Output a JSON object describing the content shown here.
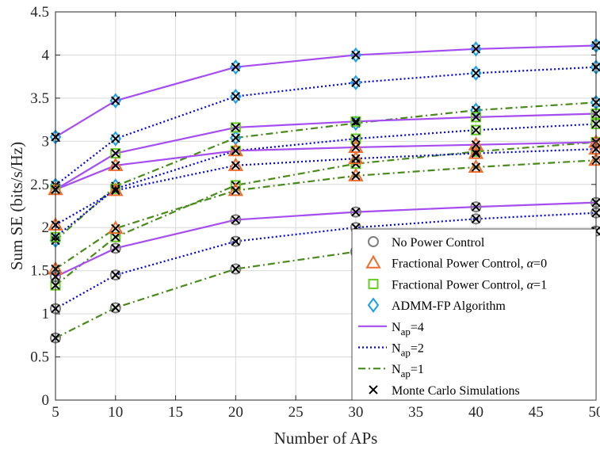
{
  "chart_data": {
    "type": "line",
    "xlabel": "Number of APs",
    "ylabel": "Sum SE (bits/s/Hz)",
    "xlim": [
      5,
      50
    ],
    "ylim": [
      0,
      4.5
    ],
    "xticks": [
      "5",
      "10",
      "15",
      "20",
      "25",
      "30",
      "35",
      "40",
      "45",
      "50"
    ],
    "yticks": [
      "0",
      "0.5",
      "1",
      "1.5",
      "2",
      "2.5",
      "3",
      "3.5",
      "4",
      "4.5"
    ],
    "grid": true,
    "legend_position": "bottom-right",
    "x": [
      5,
      10,
      20,
      30,
      40,
      50
    ],
    "colors": {
      "nap4": "#a64df2",
      "nap2": "#0000e6",
      "nap1": "#4a8a1c",
      "no_power_control": "#7f7f7f",
      "fractional_alpha0": "#ee6c2c",
      "fractional_alpha1": "#66cc22",
      "admm_fp": "#1a9fe8",
      "monte_carlo": "#000000"
    },
    "legend": [
      {
        "marker": "circle",
        "prefix": "No Power Control",
        "alpha": "",
        "suffix": ""
      },
      {
        "marker": "triangle",
        "prefix": "Fractional Power Control, ",
        "alpha": "α",
        "suffix": "=0"
      },
      {
        "marker": "square",
        "prefix": "Fractional Power Control, ",
        "alpha": "α",
        "suffix": "=1"
      },
      {
        "marker": "diamond",
        "prefix": "ADMM-FP Algorithm",
        "alpha": "",
        "suffix": ""
      },
      {
        "marker": "line-solid",
        "main": "N",
        "sub": "ap",
        "suffix": "=4"
      },
      {
        "marker": "line-dotted",
        "main": "N",
        "sub": "ap",
        "suffix": "=2"
      },
      {
        "marker": "line-dashdot",
        "main": "N",
        "sub": "ap",
        "suffix": "=1"
      },
      {
        "marker": "cross",
        "prefix": "Monte Carlo Simulations",
        "alpha": "",
        "suffix": ""
      }
    ],
    "series": [
      {
        "name": "ADMM-FP Algorithm, N_ap=4",
        "nap": 4,
        "method": "admm",
        "values": [
          3.05,
          3.47,
          3.86,
          4.0,
          4.07,
          4.11
        ]
      },
      {
        "name": "ADMM-FP Algorithm, N_ap=2",
        "nap": 2,
        "method": "admm",
        "values": [
          2.49,
          3.03,
          3.52,
          3.68,
          3.79,
          3.86
        ]
      },
      {
        "name": "ADMM-FP Algorithm, N_ap=1",
        "nap": 1,
        "method": "admm",
        "values": [
          1.85,
          2.48,
          3.04,
          3.21,
          3.36,
          3.45
        ]
      },
      {
        "name": "Fractional Power Control alpha=1, N_ap=4",
        "nap": 4,
        "method": "frac1",
        "values": [
          2.44,
          2.86,
          3.16,
          3.23,
          3.28,
          3.32
        ]
      },
      {
        "name": "Fractional Power Control alpha=1, N_ap=2",
        "nap": 2,
        "method": "frac1",
        "values": [
          1.89,
          2.45,
          2.89,
          3.03,
          3.13,
          3.2
        ]
      },
      {
        "name": "Fractional Power Control alpha=1, N_ap=1",
        "nap": 1,
        "method": "frac1",
        "values": [
          1.33,
          1.89,
          2.49,
          2.74,
          2.88,
          2.99
        ]
      },
      {
        "name": "Fractional Power Control alpha=0, N_ap=4",
        "nap": 4,
        "method": "frac0",
        "values": [
          2.44,
          2.72,
          2.89,
          2.93,
          2.96,
          2.99
        ]
      },
      {
        "name": "Fractional Power Control alpha=0, N_ap=2",
        "nap": 2,
        "method": "frac0",
        "values": [
          2.03,
          2.43,
          2.72,
          2.8,
          2.86,
          2.91
        ]
      },
      {
        "name": "Fractional Power Control alpha=0, N_ap=1",
        "nap": 1,
        "method": "frac0",
        "values": [
          1.52,
          1.99,
          2.43,
          2.6,
          2.7,
          2.78
        ]
      },
      {
        "name": "No Power Control, N_ap=4",
        "nap": 4,
        "method": "nopc",
        "values": [
          1.43,
          1.76,
          2.09,
          2.18,
          2.24,
          2.29
        ]
      },
      {
        "name": "No Power Control, N_ap=2",
        "nap": 2,
        "method": "nopc",
        "values": [
          1.06,
          1.45,
          1.84,
          2.0,
          2.1,
          2.17
        ]
      },
      {
        "name": "No Power Control, N_ap=1",
        "nap": 1,
        "method": "nopc",
        "values": [
          0.72,
          1.07,
          1.52,
          1.72,
          1.86,
          1.96
        ]
      }
    ]
  }
}
